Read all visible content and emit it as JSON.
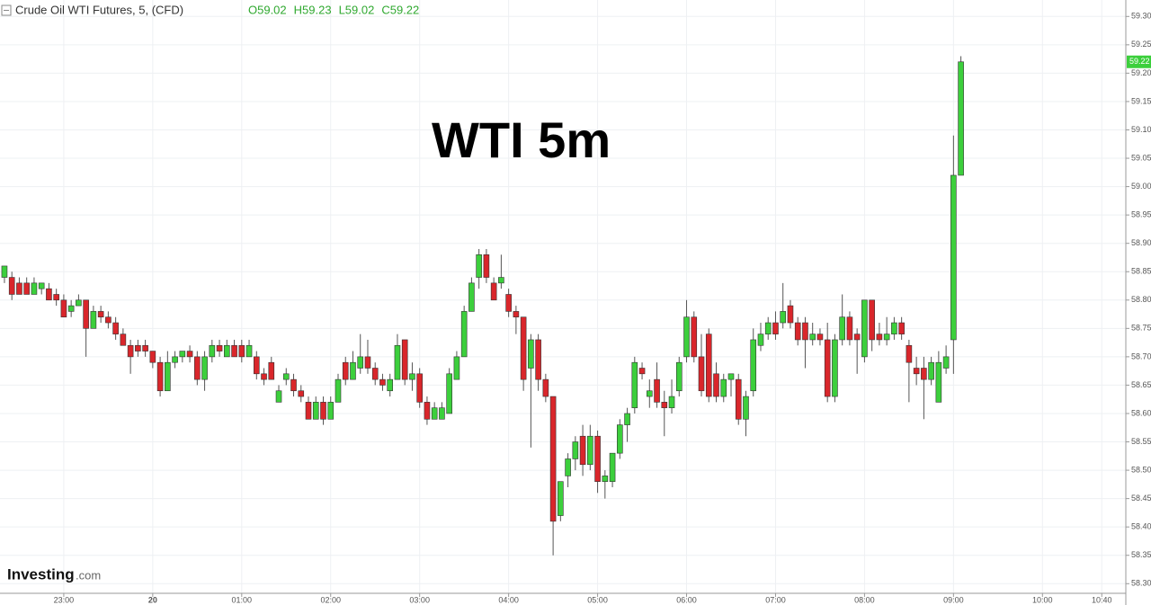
{
  "chart_data": {
    "type": "candlestick",
    "title": "Crude Oil WTI Futures, 5, (CFD)",
    "ohlc_legend": [
      "O59.02",
      "H59.23",
      "L59.02",
      "C59.22"
    ],
    "annotation": "WTI 5m",
    "logo": [
      "Investing",
      ".com"
    ],
    "up_color": "#3ccf3c",
    "down_color": "#d9262b",
    "grid": true,
    "last_price": {
      "value": 59.22,
      "label": "59.22"
    },
    "xlim": [
      1337,
      2095
    ],
    "xticks": [
      {
        "value": 1380,
        "label": "23:00"
      },
      {
        "value": 1440,
        "label": "20"
      },
      {
        "value": 1500,
        "label": "01:00"
      },
      {
        "value": 1560,
        "label": "02:00"
      },
      {
        "value": 1620,
        "label": "03:00"
      },
      {
        "value": 1680,
        "label": "04:00"
      },
      {
        "value": 1740,
        "label": "05:00"
      },
      {
        "value": 1800,
        "label": "06:00"
      },
      {
        "value": 1860,
        "label": "07:00"
      },
      {
        "value": 1920,
        "label": "08:00"
      },
      {
        "value": 1980,
        "label": "09:00"
      },
      {
        "value": 2040,
        "label": "10:00"
      },
      {
        "value": 2080,
        "label": "10:40"
      }
    ],
    "ylim": [
      58.283,
      59.329
    ],
    "yticks": [
      {
        "value": 58.3,
        "label": "58.30"
      },
      58.35,
      {
        "value": 58.4,
        "label": "58.40"
      },
      58.45,
      {
        "value": 58.5,
        "label": "58.50"
      },
      58.55,
      {
        "value": 58.6,
        "label": "58.60"
      },
      58.65,
      {
        "value": 58.7,
        "label": "58.70"
      },
      58.75,
      {
        "value": 58.8,
        "label": "58.80"
      },
      58.85,
      {
        "value": 58.9,
        "label": "58.90"
      },
      58.95,
      {
        "value": 59,
        "label": "59.00"
      },
      59.05,
      {
        "value": 59.1,
        "label": "59.10"
      },
      59.15,
      {
        "value": 59.2,
        "label": "59.20"
      },
      59.25,
      {
        "value": 59.3,
        "label": "59.30"
      }
    ],
    "x": [
      1340,
      1345,
      1350,
      1355,
      1360,
      1365,
      1370,
      1375,
      1380,
      1385,
      1390,
      1395,
      1400,
      1405,
      1410,
      1415,
      1420,
      1425,
      1430,
      1435,
      1440,
      1445,
      1450,
      1455,
      1460,
      1465,
      1470,
      1475,
      1480,
      1485,
      1490,
      1495,
      1500,
      1505,
      1510,
      1515,
      1520,
      1525,
      1530,
      1535,
      1540,
      1545,
      1550,
      1555,
      1560,
      1565,
      1570,
      1575,
      1580,
      1585,
      1590,
      1595,
      1600,
      1605,
      1610,
      1615,
      1620,
      1625,
      1630,
      1635,
      1640,
      1645,
      1650,
      1655,
      1660,
      1665,
      1670,
      1675,
      1680,
      1685,
      1690,
      1695,
      1700,
      1705,
      1710,
      1715,
      1720,
      1725,
      1730,
      1735,
      1740,
      1745,
      1750,
      1755,
      1760,
      1765,
      1770,
      1775,
      1780,
      1785,
      1790,
      1795,
      1800,
      1805,
      1810,
      1815,
      1820,
      1825,
      1830,
      1835,
      1840,
      1845,
      1850,
      1855,
      1860,
      1865,
      1870,
      1875,
      1880,
      1885,
      1890,
      1895,
      1900,
      1905,
      1910,
      1915,
      1920,
      1925,
      1930,
      1935,
      1940,
      1945,
      1950,
      1955,
      1960,
      1965,
      1970,
      1975,
      1980,
      1985
    ],
    "ohlc": [
      [
        58.84,
        58.86,
        58.83,
        58.86
      ],
      [
        58.84,
        58.85,
        58.8,
        58.81
      ],
      [
        58.83,
        58.84,
        58.81,
        58.81
      ],
      [
        58.83,
        58.84,
        58.81,
        58.81
      ],
      [
        58.81,
        58.84,
        58.81,
        58.83
      ],
      [
        58.82,
        58.83,
        58.81,
        58.83
      ],
      [
        58.82,
        58.83,
        58.8,
        58.8
      ],
      [
        58.81,
        58.82,
        58.79,
        58.8
      ],
      [
        58.8,
        58.81,
        58.77,
        58.77
      ],
      [
        58.78,
        58.8,
        58.77,
        58.79
      ],
      [
        58.79,
        58.81,
        58.79,
        58.8
      ],
      [
        58.8,
        58.8,
        58.7,
        58.75
      ],
      [
        58.75,
        58.79,
        58.75,
        58.78
      ],
      [
        58.78,
        58.79,
        58.76,
        58.77
      ],
      [
        58.77,
        58.78,
        58.75,
        58.76
      ],
      [
        58.76,
        58.77,
        58.73,
        58.74
      ],
      [
        58.74,
        58.75,
        58.72,
        58.72
      ],
      [
        58.72,
        58.73,
        58.67,
        58.7
      ],
      [
        58.72,
        58.73,
        58.7,
        58.71
      ],
      [
        58.72,
        58.73,
        58.7,
        58.71
      ],
      [
        58.71,
        58.71,
        58.68,
        58.69
      ],
      [
        58.69,
        58.7,
        58.63,
        58.64
      ],
      [
        58.64,
        58.71,
        58.64,
        58.69
      ],
      [
        58.69,
        58.71,
        58.68,
        58.7
      ],
      [
        58.7,
        58.71,
        58.69,
        58.71
      ],
      [
        58.71,
        58.72,
        58.69,
        58.7
      ],
      [
        58.7,
        58.71,
        58.65,
        58.66
      ],
      [
        58.66,
        58.71,
        58.64,
        58.7
      ],
      [
        58.7,
        58.73,
        58.69,
        58.72
      ],
      [
        58.72,
        58.73,
        58.7,
        58.71
      ],
      [
        58.7,
        58.73,
        58.7,
        58.72
      ],
      [
        58.72,
        58.73,
        58.7,
        58.7
      ],
      [
        58.72,
        58.73,
        58.69,
        58.7
      ],
      [
        58.7,
        58.73,
        58.7,
        58.72
      ],
      [
        58.7,
        58.71,
        58.66,
        58.67
      ],
      [
        58.67,
        58.68,
        58.65,
        58.66
      ],
      [
        58.69,
        58.7,
        58.66,
        58.66
      ],
      [
        58.62,
        58.65,
        58.62,
        58.64
      ],
      [
        58.66,
        58.68,
        58.65,
        58.67
      ],
      [
        58.66,
        58.67,
        58.63,
        58.64
      ],
      [
        58.64,
        58.65,
        58.62,
        58.63
      ],
      [
        58.62,
        58.63,
        58.59,
        58.59
      ],
      [
        58.59,
        58.63,
        58.59,
        58.62
      ],
      [
        58.62,
        58.63,
        58.58,
        58.59
      ],
      [
        58.59,
        58.63,
        58.59,
        58.62
      ],
      [
        58.62,
        58.67,
        58.62,
        58.66
      ],
      [
        58.69,
        58.7,
        58.65,
        58.66
      ],
      [
        58.66,
        58.71,
        58.66,
        58.69
      ],
      [
        58.68,
        58.74,
        58.67,
        58.7
      ],
      [
        58.7,
        58.73,
        58.67,
        58.68
      ],
      [
        58.68,
        58.69,
        58.65,
        58.66
      ],
      [
        58.66,
        58.67,
        58.64,
        58.65
      ],
      [
        58.64,
        58.67,
        58.63,
        58.66
      ],
      [
        58.66,
        58.74,
        58.66,
        58.72
      ],
      [
        58.73,
        58.73,
        58.65,
        58.66
      ],
      [
        58.66,
        58.69,
        58.64,
        58.67
      ],
      [
        58.67,
        58.68,
        58.61,
        58.62
      ],
      [
        58.62,
        58.63,
        58.58,
        58.59
      ],
      [
        58.59,
        58.62,
        58.59,
        58.61
      ],
      [
        58.59,
        58.62,
        58.59,
        58.61
      ],
      [
        58.6,
        58.68,
        58.6,
        58.67
      ],
      [
        58.66,
        58.71,
        58.66,
        58.7
      ],
      [
        58.7,
        58.79,
        58.7,
        58.78
      ],
      [
        58.78,
        58.84,
        58.78,
        58.83
      ],
      [
        58.84,
        58.89,
        58.82,
        58.88
      ],
      [
        58.88,
        58.89,
        58.83,
        58.84
      ],
      [
        58.83,
        58.84,
        58.8,
        58.8
      ],
      [
        58.83,
        58.88,
        58.82,
        58.84
      ],
      [
        58.81,
        58.82,
        58.77,
        58.78
      ],
      [
        58.78,
        58.79,
        58.74,
        58.77
      ],
      [
        58.77,
        58.77,
        58.64,
        58.66
      ],
      [
        58.68,
        58.74,
        58.54,
        58.73
      ],
      [
        58.73,
        58.74,
        58.64,
        58.66
      ],
      [
        58.66,
        58.67,
        58.62,
        58.63
      ],
      [
        58.63,
        58.63,
        58.35,
        58.41
      ],
      [
        58.42,
        58.48,
        58.41,
        58.48
      ],
      [
        58.49,
        58.53,
        58.47,
        58.52
      ],
      [
        58.52,
        58.56,
        58.5,
        58.55
      ],
      [
        58.56,
        58.58,
        58.49,
        58.51
      ],
      [
        58.51,
        58.58,
        58.5,
        58.56
      ],
      [
        58.56,
        58.57,
        58.46,
        58.48
      ],
      [
        58.48,
        58.5,
        58.45,
        58.49
      ],
      [
        58.48,
        58.53,
        58.47,
        58.53
      ],
      [
        58.53,
        58.59,
        58.52,
        58.58
      ],
      [
        58.58,
        58.61,
        58.55,
        58.6
      ],
      [
        58.61,
        58.7,
        58.6,
        58.69
      ],
      [
        58.68,
        58.69,
        58.66,
        58.67
      ],
      [
        58.63,
        58.66,
        58.61,
        58.64
      ],
      [
        58.66,
        58.69,
        58.61,
        58.62
      ],
      [
        58.62,
        58.64,
        58.56,
        58.61
      ],
      [
        58.61,
        58.66,
        58.6,
        58.63
      ],
      [
        58.64,
        58.7,
        58.63,
        58.69
      ],
      [
        58.7,
        58.8,
        58.69,
        58.77
      ],
      [
        58.77,
        58.78,
        58.69,
        58.7
      ],
      [
        58.7,
        58.74,
        58.63,
        58.64
      ],
      [
        58.74,
        58.75,
        58.62,
        58.63
      ],
      [
        58.67,
        58.69,
        58.62,
        58.63
      ],
      [
        58.63,
        58.67,
        58.62,
        58.66
      ],
      [
        58.66,
        58.67,
        58.63,
        58.67
      ],
      [
        58.66,
        58.67,
        58.58,
        58.59
      ],
      [
        58.59,
        58.64,
        58.56,
        58.63
      ],
      [
        58.64,
        58.75,
        58.63,
        58.73
      ],
      [
        58.72,
        58.76,
        58.71,
        58.74
      ],
      [
        58.74,
        58.77,
        58.73,
        58.76
      ],
      [
        58.76,
        58.78,
        58.73,
        58.74
      ],
      [
        58.76,
        58.83,
        58.75,
        58.78
      ],
      [
        58.79,
        58.8,
        58.75,
        58.76
      ],
      [
        58.76,
        58.77,
        58.72,
        58.73
      ],
      [
        58.76,
        58.77,
        58.68,
        58.73
      ],
      [
        58.73,
        58.76,
        58.72,
        58.74
      ],
      [
        58.74,
        58.75,
        58.72,
        58.73
      ],
      [
        58.73,
        58.76,
        58.62,
        58.63
      ],
      [
        58.63,
        58.74,
        58.62,
        58.73
      ],
      [
        58.73,
        58.81,
        58.72,
        58.77
      ],
      [
        58.77,
        58.78,
        58.72,
        58.73
      ],
      [
        58.74,
        58.75,
        58.67,
        58.73
      ],
      [
        58.7,
        58.8,
        58.69,
        58.8
      ],
      [
        58.8,
        58.8,
        58.71,
        58.73
      ],
      [
        58.74,
        58.76,
        58.72,
        58.73
      ],
      [
        58.73,
        58.77,
        58.72,
        58.74
      ],
      [
        58.74,
        58.77,
        58.73,
        58.76
      ],
      [
        58.76,
        58.77,
        58.73,
        58.74
      ],
      [
        58.72,
        58.73,
        58.62,
        58.69
      ],
      [
        58.68,
        58.7,
        58.65,
        58.67
      ],
      [
        58.68,
        58.7,
        58.59,
        58.66
      ],
      [
        58.66,
        58.7,
        58.65,
        58.69
      ],
      [
        58.62,
        58.71,
        58.62,
        58.69
      ],
      [
        58.68,
        58.72,
        58.67,
        58.7
      ],
      [
        58.73,
        59.09,
        58.67,
        59.02
      ],
      [
        59.02,
        59.23,
        59.02,
        59.22
      ]
    ]
  }
}
